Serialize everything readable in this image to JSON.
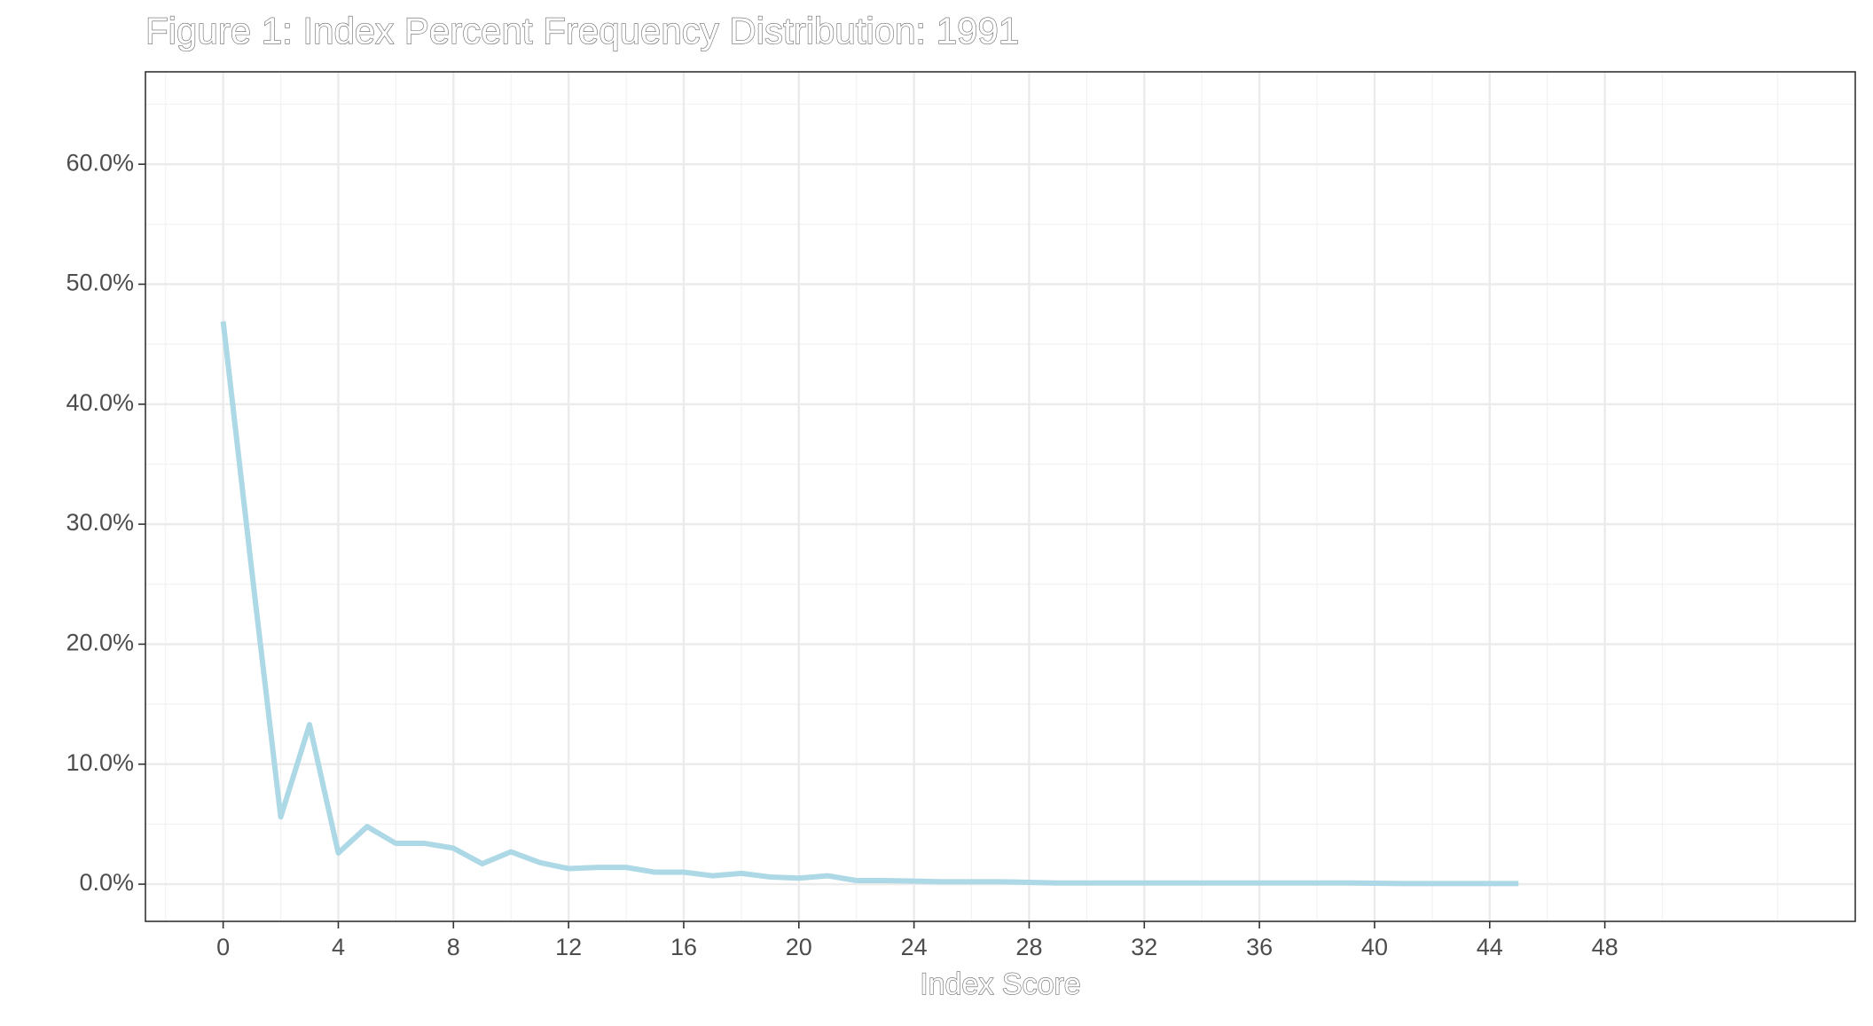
{
  "chart_data": {
    "type": "line",
    "title": "Figure 1: Index Percent Frequency Distribution: 1991",
    "x_label": "Index Score",
    "x": [
      0,
      1,
      2,
      3,
      4,
      5,
      6,
      7,
      8,
      9,
      10,
      11,
      12,
      13,
      14,
      15,
      16,
      17,
      18,
      19,
      20,
      21,
      22,
      23,
      24,
      25,
      26,
      27,
      28,
      29,
      30,
      31,
      32,
      33,
      34,
      35,
      36,
      37,
      38,
      39,
      40,
      41,
      42,
      43,
      44,
      45
    ],
    "series": [
      {
        "name": "1991",
        "color": "#add8e6",
        "values": [
          46.9,
          26,
          5.6,
          13.3,
          2.6,
          4.8,
          3.4,
          3.4,
          3.0,
          1.7,
          2.7,
          1.8,
          1.3,
          1.4,
          1.4,
          1.0,
          1.0,
          0.7,
          0.9,
          0.6,
          0.5,
          0.7,
          0.3,
          0.3,
          0.25,
          0.2,
          0.2,
          0.2,
          0.15,
          0.1,
          0.1,
          0.1,
          0.1,
          0.1,
          0.1,
          0.1,
          0.1,
          0.1,
          0.1,
          0.1,
          0.08,
          0.05,
          0.05,
          0.05,
          0.05,
          0.05
        ]
      }
    ],
    "xlim": [
      -2.7,
      56.7
    ],
    "ylim": [
      -3.1,
      67.7
    ],
    "xticks": [
      0,
      4,
      8,
      12,
      16,
      20,
      24,
      28,
      32,
      36,
      40,
      44,
      48
    ],
    "yticks": [
      {
        "value": 0,
        "label": "0.0%"
      },
      {
        "value": 10,
        "label": "10.0%"
      },
      {
        "value": 20,
        "label": "20.0%"
      },
      {
        "value": 30,
        "label": "30.0%"
      },
      {
        "value": 40,
        "label": "40.0%"
      },
      {
        "value": 50,
        "label": "50.0%"
      },
      {
        "value": 60,
        "label": "60.0%"
      }
    ],
    "grid": true,
    "minor_grid": true
  }
}
